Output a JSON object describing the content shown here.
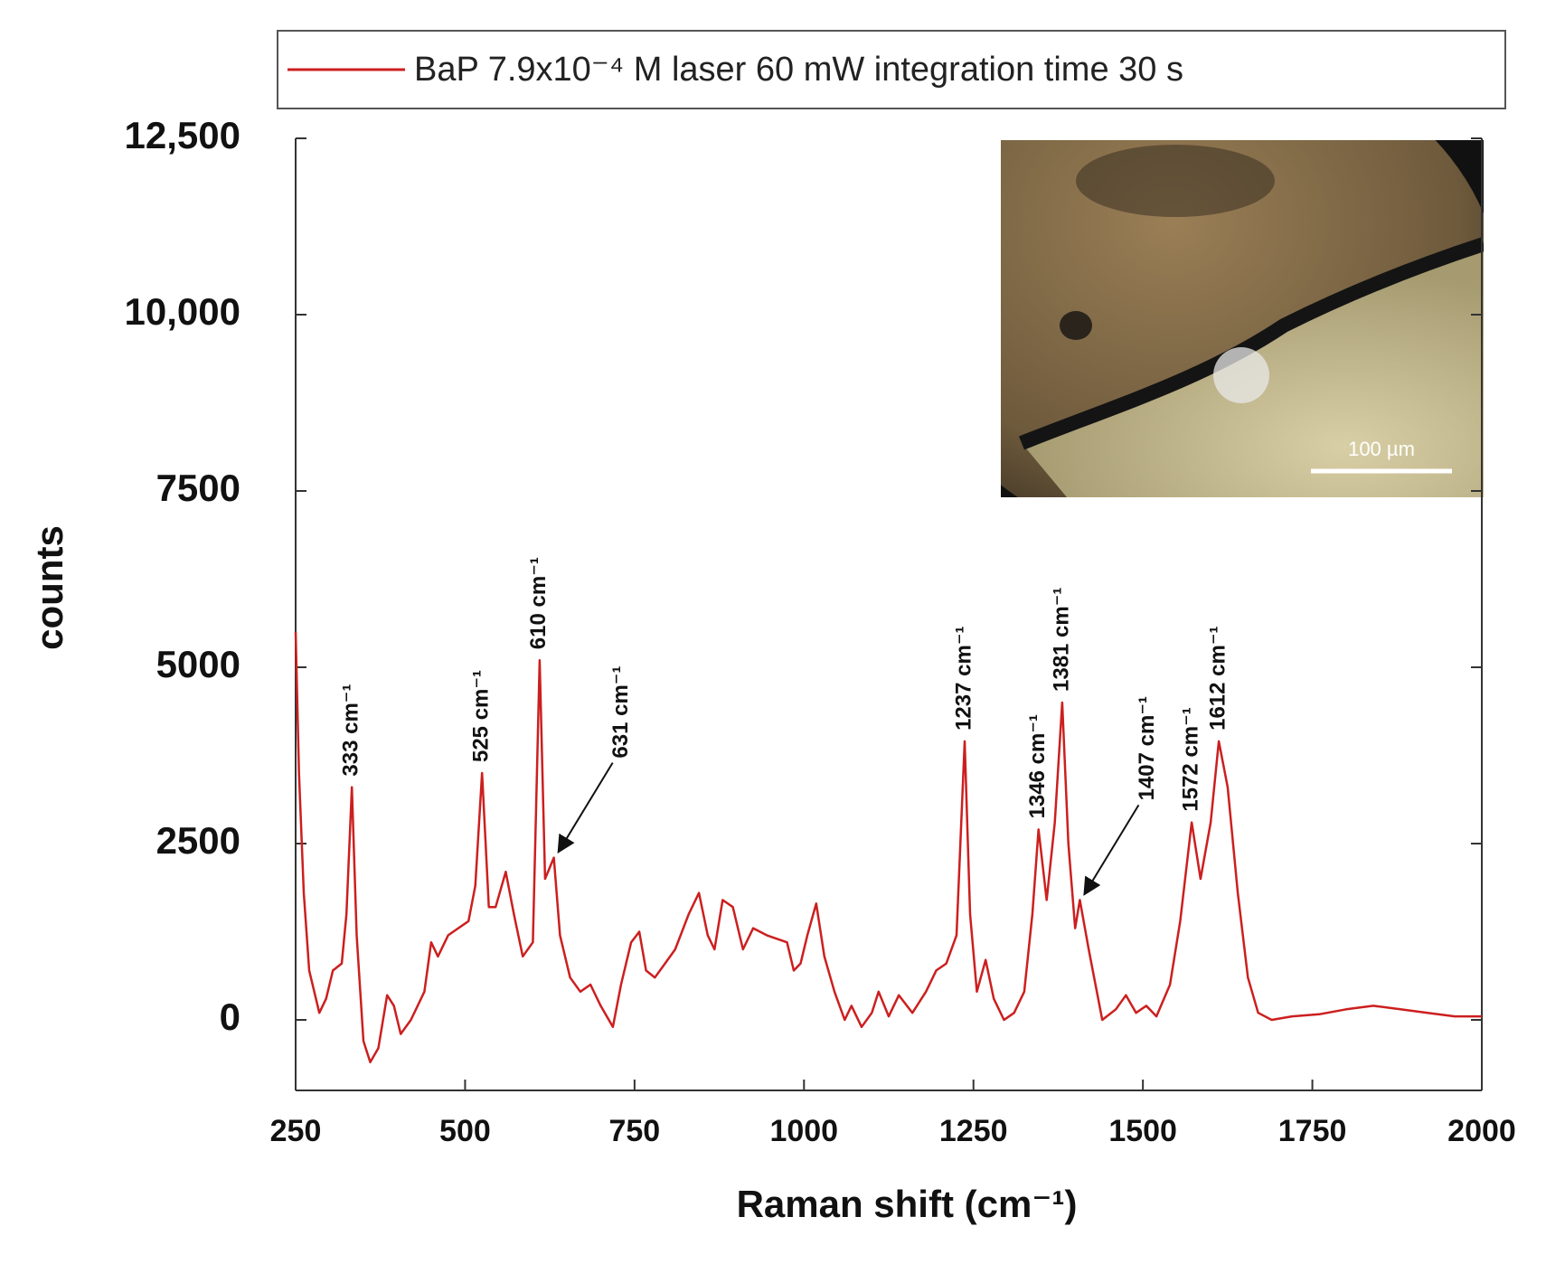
{
  "chart_data": {
    "type": "line",
    "x_label": "Raman shift (cm⁻¹)",
    "y_label": "counts",
    "xlim": [
      250,
      2000
    ],
    "xticks": [
      250,
      500,
      750,
      1000,
      1250,
      1500,
      1750,
      2000
    ],
    "ylim": [
      -1000,
      12500
    ],
    "yticks": [
      0,
      2500,
      5000,
      7500,
      {
        "value": 10000,
        "label": "10,000"
      },
      {
        "value": 12500,
        "label": "12,500"
      }
    ],
    "legend": "top",
    "series": [
      {
        "name": "BaP 7.9x10⁻⁴ M laser 60 mW integration time 30 s",
        "color": "#cc1f1f",
        "x": [
          250,
          255,
          262,
          270,
          285,
          295,
          305,
          318,
          325,
          333,
          340,
          350,
          360,
          372,
          385,
          395,
          405,
          420,
          440,
          450,
          460,
          475,
          490,
          505,
          515,
          525,
          535,
          545,
          560,
          572,
          585,
          600,
          610,
          618,
          631,
          640,
          655,
          670,
          685,
          700,
          718,
          730,
          745,
          757,
          767,
          780,
          795,
          810,
          830,
          845,
          858,
          868,
          880,
          895,
          910,
          925,
          945,
          960,
          975,
          985,
          995,
          1005,
          1018,
          1030,
          1045,
          1060,
          1070,
          1085,
          1100,
          1110,
          1125,
          1140,
          1160,
          1180,
          1195,
          1210,
          1225,
          1237,
          1245,
          1255,
          1268,
          1280,
          1295,
          1310,
          1325,
          1337,
          1346,
          1358,
          1370,
          1381,
          1390,
          1400,
          1407,
          1420,
          1440,
          1460,
          1475,
          1490,
          1505,
          1520,
          1540,
          1555,
          1572,
          1585,
          1600,
          1612,
          1625,
          1640,
          1655,
          1670,
          1690,
          1720,
          1760,
          1800,
          1840,
          1880,
          1920,
          1960,
          2000
        ],
        "values": [
          5500,
          3500,
          1800,
          700,
          100,
          300,
          700,
          800,
          1500,
          3300,
          1200,
          -300,
          -600,
          -400,
          350,
          200,
          -200,
          0,
          400,
          1100,
          900,
          1200,
          1300,
          1400,
          1900,
          3500,
          1600,
          1600,
          2100,
          1500,
          900,
          1100,
          5100,
          2000,
          2300,
          1200,
          600,
          400,
          500,
          200,
          -100,
          500,
          1100,
          1250,
          700,
          600,
          800,
          1000,
          1500,
          1800,
          1200,
          1000,
          1700,
          1600,
          1000,
          1300,
          1200,
          1150,
          1100,
          700,
          800,
          1200,
          1650,
          900,
          400,
          0,
          200,
          -100,
          100,
          400,
          50,
          350,
          100,
          400,
          700,
          800,
          1200,
          3950,
          1500,
          400,
          850,
          300,
          0,
          100,
          400,
          1500,
          2700,
          1700,
          2800,
          4500,
          2500,
          1300,
          1700,
          1000,
          0,
          150,
          350,
          100,
          200,
          50,
          500,
          1400,
          2800,
          2000,
          2800,
          3950,
          3300,
          1800,
          600,
          100,
          0,
          50,
          80,
          150,
          200,
          150,
          100,
          50,
          50
        ]
      }
    ],
    "annotations": [
      {
        "text": "333 cm⁻¹",
        "x": 333,
        "y": 3300
      },
      {
        "text": "525 cm⁻¹",
        "x": 525,
        "y": 3500
      },
      {
        "text": "610 cm⁻¹",
        "x": 610,
        "y": 5100
      },
      {
        "text": "631 cm⁻¹",
        "x": 631,
        "y": 2300,
        "arrow": true
      },
      {
        "text": "1237 cm⁻¹",
        "x": 1237,
        "y": 3950
      },
      {
        "text": "1346 cm⁻¹",
        "x": 1346,
        "y": 2700
      },
      {
        "text": "1381 cm⁻¹",
        "x": 1381,
        "y": 4500
      },
      {
        "text": "1407 cm⁻¹",
        "x": 1407,
        "y": 1700,
        "arrow": true
      },
      {
        "text": "1572 cm⁻¹",
        "x": 1572,
        "y": 2800
      },
      {
        "text": "1612 cm⁻¹",
        "x": 1612,
        "y": 3950
      }
    ],
    "inset_scale_label": "100 µm"
  }
}
